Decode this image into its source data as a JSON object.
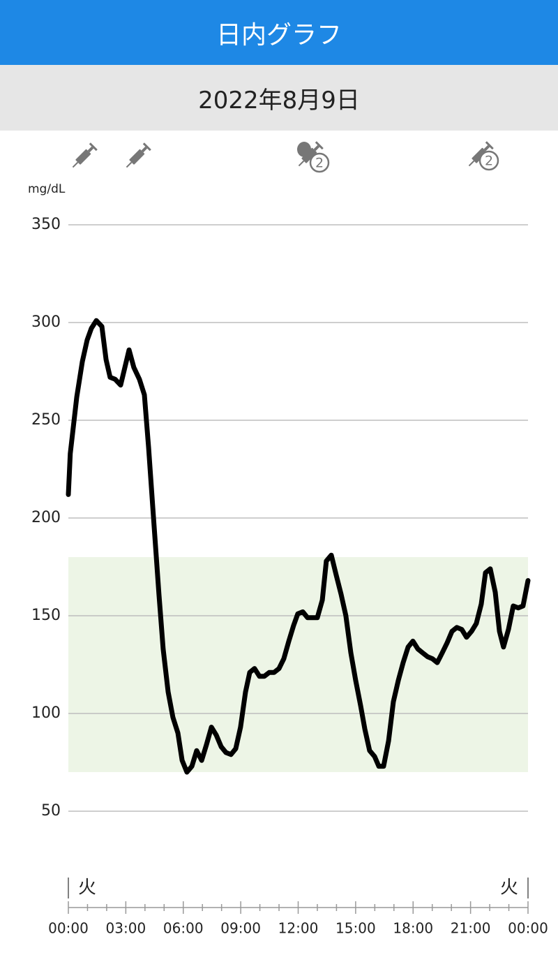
{
  "header": {
    "title": "日内グラフ"
  },
  "date": "2022年8月9日",
  "event_badges": [
    "2",
    "2"
  ],
  "chart_data": {
    "type": "line",
    "y_unit": "mg/dL",
    "day_labels": [
      "火",
      "火"
    ],
    "x": [
      0,
      0.1,
      0.44,
      0.73,
      0.98,
      1.2,
      1.46,
      1.75,
      1.97,
      2.18,
      2.44,
      2.73,
      2.95,
      3.17,
      3.42,
      3.71,
      3.97,
      4.19,
      4.44,
      4.73,
      4.95,
      5.21,
      5.46,
      5.72,
      5.94,
      6.19,
      6.45,
      6.7,
      6.96,
      7.21,
      7.47,
      7.72,
      7.98,
      8.23,
      8.49,
      8.74,
      8.99,
      9.25,
      9.47,
      9.72,
      9.98,
      10.23,
      10.49,
      10.74,
      11.0,
      11.25,
      11.51,
      11.76,
      11.98,
      12.24,
      12.49,
      12.75,
      13.0,
      13.26,
      13.47,
      13.73,
      13.98,
      14.24,
      14.49,
      14.75,
      15.0,
      15.26,
      15.48,
      15.73,
      15.99,
      16.21,
      16.46,
      16.72,
      16.97,
      17.23,
      17.48,
      17.74,
      17.99,
      18.25,
      18.5,
      18.76,
      19.01,
      19.26,
      19.52,
      19.77,
      20.03,
      20.28,
      20.54,
      20.79,
      21.05,
      21.3,
      21.56,
      21.78,
      22.03,
      22.29,
      22.51,
      22.72,
      22.98,
      23.23,
      23.49,
      23.74,
      24.0
    ],
    "values": [
      212,
      233,
      262,
      280,
      291,
      297,
      301,
      298,
      281,
      272,
      271,
      268,
      277,
      286,
      277,
      271,
      263,
      236,
      201,
      161,
      133,
      111,
      98,
      90,
      76,
      70,
      73,
      81,
      76,
      84,
      93,
      89,
      83,
      80,
      79,
      82,
      93,
      111,
      121,
      123,
      119,
      119,
      121,
      121,
      123,
      128,
      137,
      145,
      151,
      152,
      149,
      149,
      149,
      158,
      178,
      181,
      171,
      161,
      150,
      131,
      117,
      104,
      92,
      81,
      78,
      73,
      73,
      86,
      106,
      117,
      126,
      134,
      137,
      133,
      131,
      129,
      128,
      126,
      131,
      136,
      142,
      144,
      143,
      139,
      142,
      146,
      156,
      172,
      174,
      162,
      142,
      134,
      143,
      155,
      154,
      155,
      168
    ],
    "color": "#000000",
    "target_range": [
      70,
      180
    ],
    "target_color": "#edf5e6",
    "ylim": [
      25,
      360
    ],
    "yticks": [
      50,
      100,
      150,
      200,
      250,
      300,
      350
    ],
    "grid": true,
    "xlim": [
      0,
      24
    ],
    "xticks": [
      {
        "value": 0,
        "label": "00:00"
      },
      {
        "value": 3,
        "label": "03:00"
      },
      {
        "value": 6,
        "label": "06:00"
      },
      {
        "value": 9,
        "label": "09:00"
      },
      {
        "value": 12,
        "label": "12:00"
      },
      {
        "value": 15,
        "label": "15:00"
      },
      {
        "value": 18,
        "label": "18:00"
      },
      {
        "value": 21,
        "label": "21:00"
      },
      {
        "value": 24,
        "label": "00:00"
      }
    ],
    "xminorticks": [
      1,
      2,
      4,
      5,
      7,
      8,
      10,
      11,
      13,
      14,
      16,
      17,
      19,
      20,
      22,
      23
    ]
  }
}
